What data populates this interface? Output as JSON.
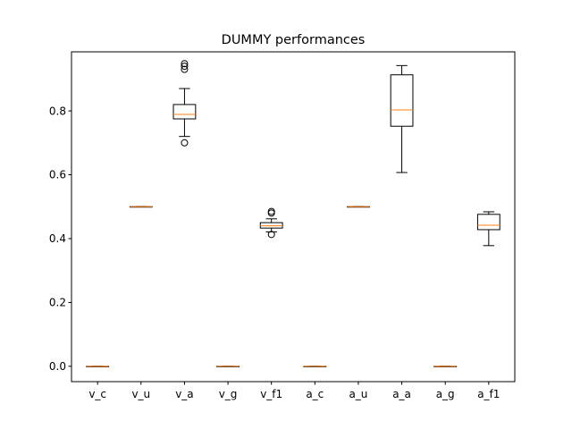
{
  "chart_data": {
    "type": "boxplot",
    "title": "DUMMY performances",
    "xlabel": "",
    "ylabel": "",
    "ylim": [
      -0.048,
      0.985
    ],
    "yticks": [
      0.0,
      0.2,
      0.4,
      0.6,
      0.8
    ],
    "ytick_labels": [
      "0.0",
      "0.2",
      "0.4",
      "0.6",
      "0.8"
    ],
    "grid": false,
    "box_color": "#000000",
    "median_color": "#ff7f0e",
    "boxes": [
      {
        "label": "v_c",
        "whislo": 0.0,
        "q1": 0.0,
        "med": 0.0,
        "q3": 0.0,
        "whishi": 0.0,
        "fliers": []
      },
      {
        "label": "v_u",
        "whislo": 0.5,
        "q1": 0.5,
        "med": 0.5,
        "q3": 0.5,
        "whishi": 0.5,
        "fliers": []
      },
      {
        "label": "v_a",
        "whislo": 0.72,
        "q1": 0.775,
        "med": 0.789,
        "q3": 0.82,
        "whishi": 0.87,
        "fliers": [
          0.7,
          0.93,
          0.94,
          0.948
        ]
      },
      {
        "label": "v_g",
        "whislo": 0.0,
        "q1": 0.0,
        "med": 0.0,
        "q3": 0.0,
        "whishi": 0.0,
        "fliers": []
      },
      {
        "label": "v_f1",
        "whislo": 0.421,
        "q1": 0.433,
        "med": 0.44,
        "q3": 0.45,
        "whishi": 0.462,
        "fliers": [
          0.413,
          0.48,
          0.485
        ]
      },
      {
        "label": "a_c",
        "whislo": 0.0,
        "q1": 0.0,
        "med": 0.0,
        "q3": 0.0,
        "whishi": 0.0,
        "fliers": []
      },
      {
        "label": "a_u",
        "whislo": 0.5,
        "q1": 0.5,
        "med": 0.5,
        "q3": 0.5,
        "whishi": 0.5,
        "fliers": []
      },
      {
        "label": "a_a",
        "whislo": 0.607,
        "q1": 0.752,
        "med": 0.803,
        "q3": 0.913,
        "whishi": 0.942,
        "fliers": []
      },
      {
        "label": "a_g",
        "whislo": 0.0,
        "q1": 0.0,
        "med": 0.0,
        "q3": 0.0,
        "whishi": 0.0,
        "fliers": []
      },
      {
        "label": "a_f1",
        "whislo": 0.378,
        "q1": 0.428,
        "med": 0.442,
        "q3": 0.476,
        "whishi": 0.484,
        "fliers": []
      }
    ]
  }
}
